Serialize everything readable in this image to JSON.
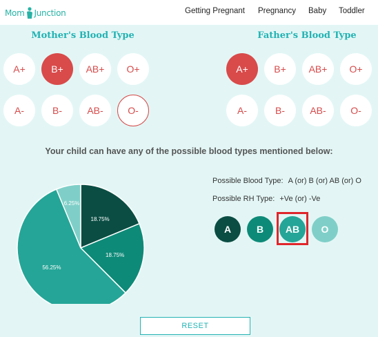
{
  "brand": {
    "logo_left": "Mom",
    "logo_right": "Junction"
  },
  "nav": {
    "items": [
      "Getting Pregnant",
      "Pregnancy",
      "Baby",
      "Toddler"
    ]
  },
  "mother": {
    "title": "Mother's Blood Type",
    "types": [
      "A+",
      "B+",
      "AB+",
      "O+",
      "A-",
      "B-",
      "AB-",
      "O-"
    ],
    "selected": "B+",
    "outlined": "O-"
  },
  "father": {
    "title": "Father's Blood Type",
    "types": [
      "A+",
      "B+",
      "AB+",
      "O+",
      "A-",
      "B-",
      "AB-",
      "O-"
    ],
    "selected": "A+"
  },
  "result": {
    "question": "Your child can have any of the possible blood types mentioned below:",
    "blood_type_label": "Possible Blood Type:",
    "blood_type_value": "A (or) B (or) AB (or) O",
    "rh_label": "Possible RH Type:",
    "rh_value": "+Ve (or) -Ve",
    "circles": [
      {
        "label": "A",
        "color": "#0b4d43"
      },
      {
        "label": "B",
        "color": "#0e8a78"
      },
      {
        "label": "AB",
        "color": "#25a597"
      },
      {
        "label": "O",
        "color": "#7fcfc8"
      }
    ],
    "highlighted": "AB"
  },
  "chart_data": {
    "type": "pie",
    "slices": [
      {
        "label": "A",
        "value": 18.75,
        "text": "18.75%",
        "color": "#0b4d43"
      },
      {
        "label": "B",
        "value": 18.75,
        "text": "18.75%",
        "color": "#0e8a78"
      },
      {
        "label": "AB",
        "value": 56.25,
        "text": "56.25%",
        "color": "#25a597"
      },
      {
        "label": "O",
        "value": 6.25,
        "text": "6.25%",
        "color": "#7fcfc8"
      }
    ]
  },
  "reset_label": "RESET",
  "colors": {
    "teal": "#23b2b3",
    "red": "#d94a4a",
    "background": "#e3f6f5"
  }
}
